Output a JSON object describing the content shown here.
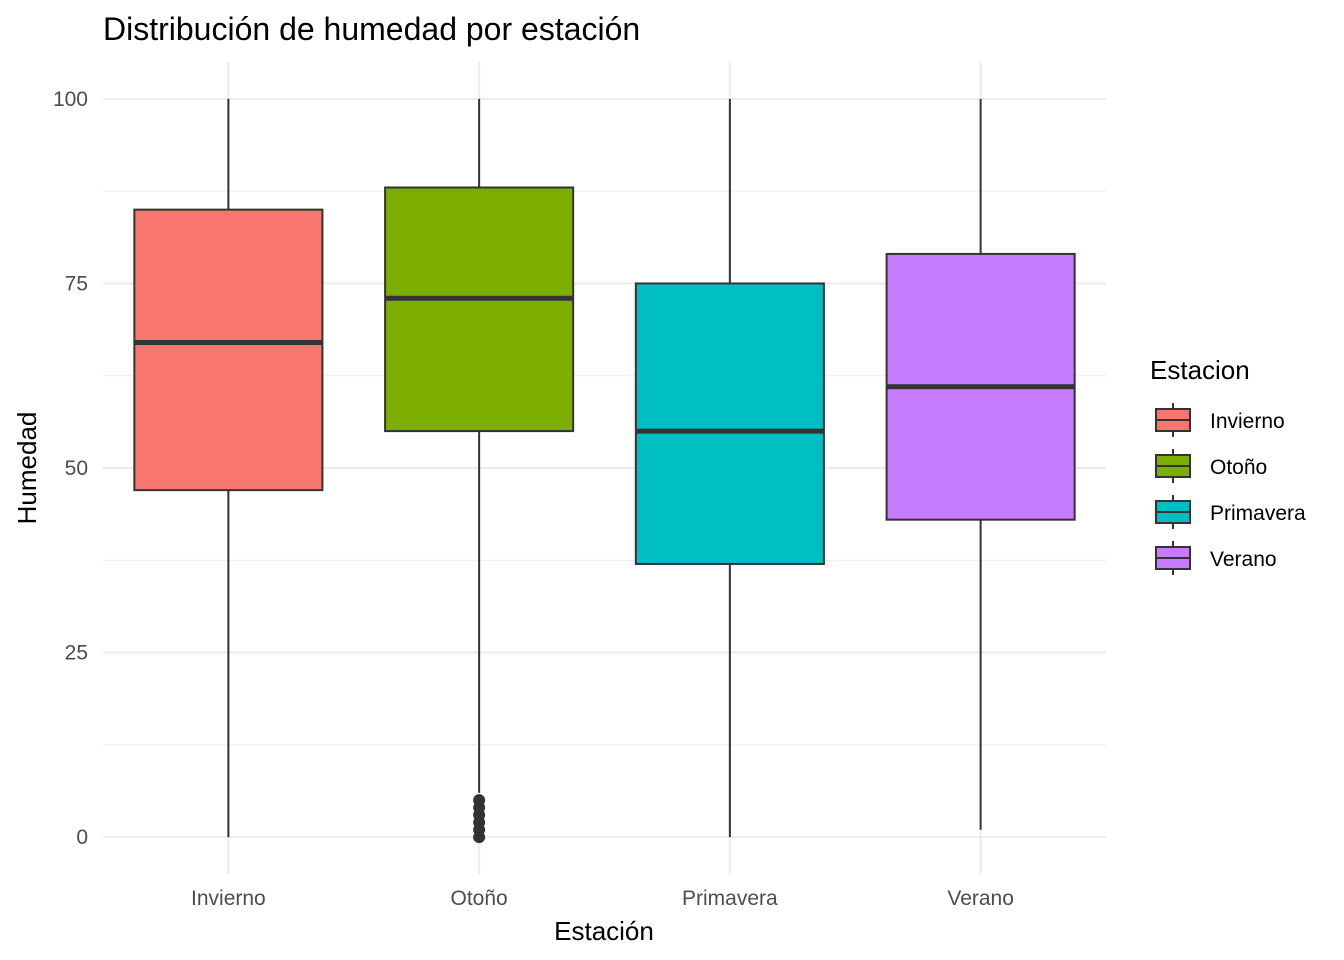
{
  "colors": {
    "grid": "#ebebeb",
    "box_outline": "#333333",
    "whisker": "#333333"
  },
  "chart_data": {
    "type": "boxplot",
    "title": "Distribución de humedad por estación",
    "xlabel": "Estación",
    "ylabel": "Humedad",
    "ylim": [
      -5,
      105
    ],
    "yticks": [
      0,
      25,
      50,
      75,
      100
    ],
    "grid": true,
    "legend": {
      "title": "Estacion",
      "placement": "right",
      "entries": [
        "Invierno",
        "Otoño",
        "Primavera",
        "Verano"
      ]
    },
    "categories": [
      "Invierno",
      "Otoño",
      "Primavera",
      "Verano"
    ],
    "series": [
      {
        "name": "Invierno",
        "color": "#F8766D",
        "min": 0,
        "q1": 47,
        "median": 67,
        "q3": 85,
        "max": 100,
        "outliers": []
      },
      {
        "name": "Otoño",
        "color": "#7CAE00",
        "min": 6,
        "q1": 55,
        "median": 73,
        "q3": 88,
        "max": 100,
        "outliers": [
          0,
          1,
          2,
          3,
          4,
          5
        ]
      },
      {
        "name": "Primavera",
        "color": "#00BFC4",
        "min": 0,
        "q1": 37,
        "median": 55,
        "q3": 75,
        "max": 100,
        "outliers": []
      },
      {
        "name": "Verano",
        "color": "#C77CFF",
        "min": 1,
        "q1": 43,
        "median": 61,
        "q3": 79,
        "max": 100,
        "outliers": []
      }
    ]
  }
}
